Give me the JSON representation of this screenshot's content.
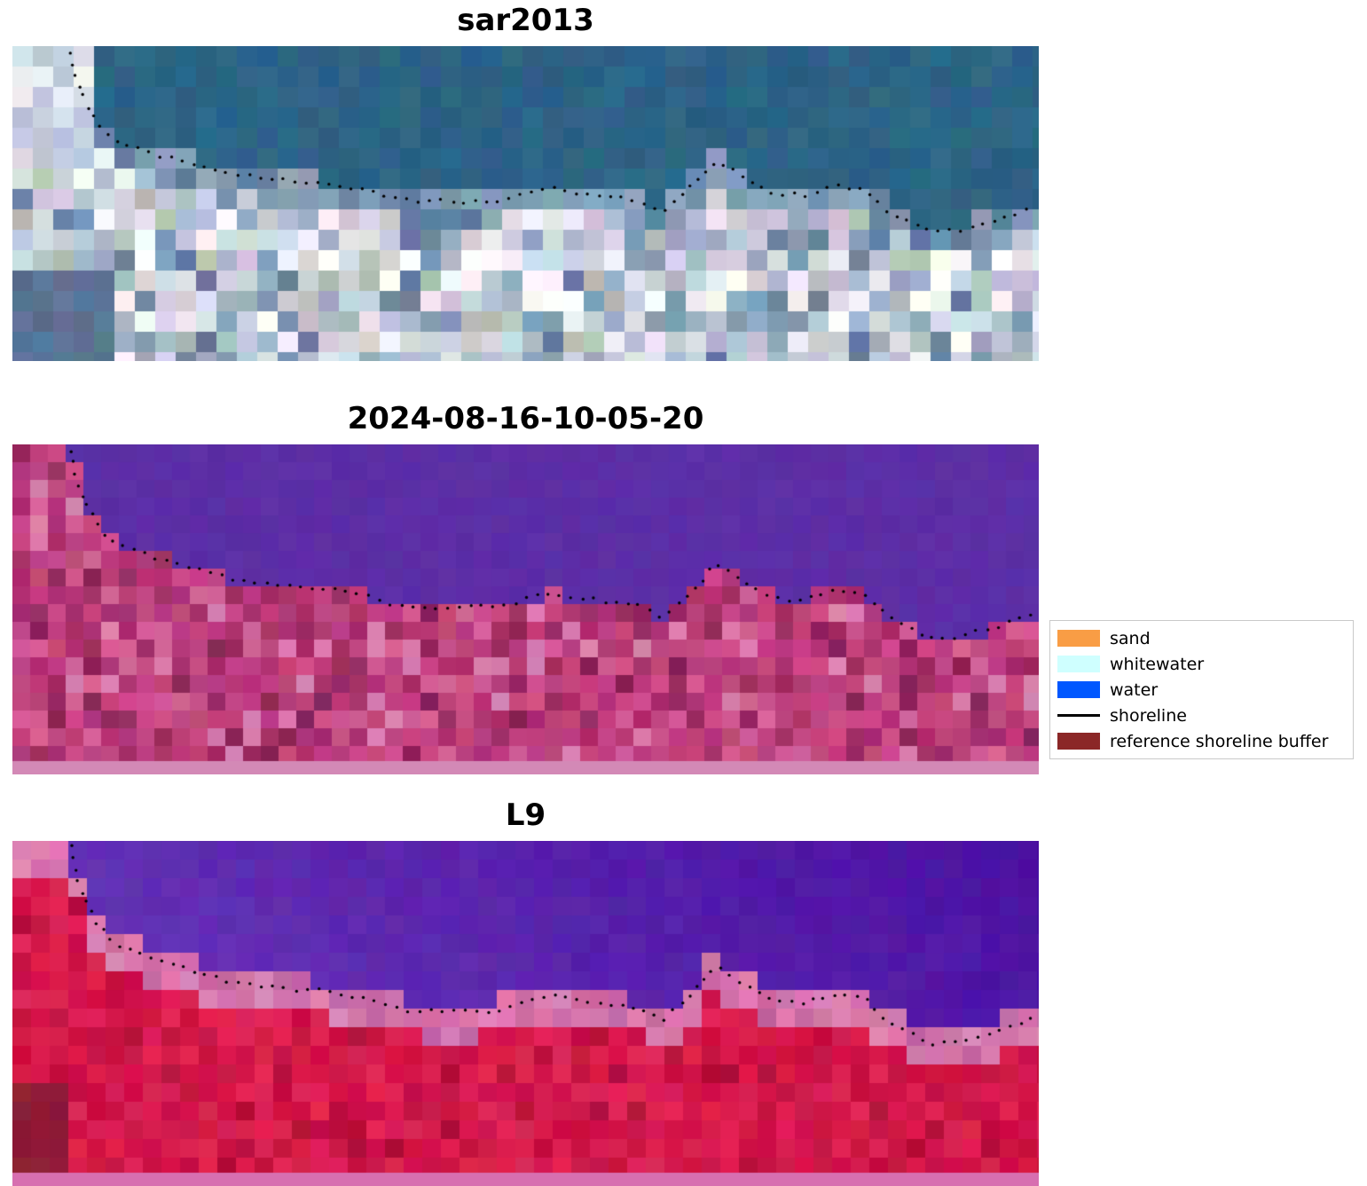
{
  "figure": {
    "background": "#ffffff"
  },
  "panels": [
    {
      "title": "sar2013",
      "style": "sar",
      "colors": {
        "water": "#2c6486",
        "cloud": [
          "#d9dde8",
          "#c6cede",
          "#edeff5",
          "#b9c3d9"
        ],
        "trans": [
          "#6d8cab",
          "#7e9ab5",
          "#5d7fa0",
          "#8aa2bc"
        ],
        "land": [
          "#b9c5d5",
          "#d5dde8",
          "#e9e9f1",
          "#a9b9cd",
          "#c9d5dd",
          "#99a9c1",
          "#d1c9d9",
          "#b1c1b9",
          "#f5f5f9",
          "#8199b5",
          "#697d9d",
          "#c9c1d5"
        ],
        "bright": "#ffffff",
        "cornerDark": "#5a7294"
      }
    },
    {
      "title": "2024-08-16-10-05-20",
      "style": "class",
      "colors": {
        "water": "#5c2ea6",
        "land": [
          "#b43578",
          "#c34182",
          "#aa2f6c",
          "#cd4d8a",
          "#9e2c62",
          "#be3f7e",
          "#d45f96",
          "#c2467a"
        ],
        "landLight": "#d97fae",
        "landDark": "#8a2458",
        "strip": "#d389b6"
      }
    },
    {
      "title": "L9",
      "style": "l9",
      "colors": {
        "waterLeft": "#6d3cba",
        "waterRight": "#4a10a2",
        "trans": [
          "#d273aa",
          "#dd85b6",
          "#c767a2",
          "#e07ab0"
        ],
        "land": [
          "#d5174a",
          "#c91043",
          "#e02355",
          "#cc1545",
          "#db2050"
        ],
        "landDark": "#b30f3a",
        "cornerDark": "#8c1c34",
        "strip": "#d76fb0"
      }
    }
  ],
  "legend": {
    "items": [
      {
        "label": "sand",
        "color": "#f99d45",
        "type": "patch"
      },
      {
        "label": "whitewater",
        "color": "#cfffff",
        "type": "patch"
      },
      {
        "label": "water",
        "color": "#0057ff",
        "type": "patch"
      },
      {
        "label": "shoreline",
        "color": "#000000",
        "type": "line"
      },
      {
        "label": "reference shoreline buffer",
        "color": "#8b2727",
        "type": "patch"
      }
    ]
  },
  "chart_data": {
    "type": "heatmap",
    "title": "",
    "panels": [
      {
        "title": "sar2013",
        "content": "pixelated RGB satellite image; teal water in upper portion, light urban/land pixels and clouds below; dotted black shoreline overlay"
      },
      {
        "title": "2024-08-16-10-05-20",
        "content": "false-color classification image; flat purple water above, magenta/pink land below, light pink reference shoreline buffer strip along the bottom edge; dotted black shoreline overlay"
      },
      {
        "title": "L9",
        "content": "Landsat-9 false-color image; purple water above, crimson-red land below with pink transition band at the water edge, light pink buffer strip along the bottom edge; dotted black shoreline overlay"
      }
    ],
    "legend_entries": [
      "sand",
      "whitewater",
      "water",
      "shoreline",
      "reference shoreline buffer"
    ],
    "shoreline_profile": [
      [
        0.057,
        0.02
      ],
      [
        0.062,
        0.1
      ],
      [
        0.072,
        0.18
      ],
      [
        0.085,
        0.25
      ],
      [
        0.1,
        0.3
      ],
      [
        0.13,
        0.335
      ],
      [
        0.16,
        0.36
      ],
      [
        0.2,
        0.4
      ],
      [
        0.25,
        0.425
      ],
      [
        0.3,
        0.435
      ],
      [
        0.335,
        0.455
      ],
      [
        0.38,
        0.49
      ],
      [
        0.43,
        0.495
      ],
      [
        0.47,
        0.49
      ],
      [
        0.5,
        0.47
      ],
      [
        0.525,
        0.45
      ],
      [
        0.55,
        0.465
      ],
      [
        0.58,
        0.475
      ],
      [
        0.61,
        0.49
      ],
      [
        0.633,
        0.52
      ],
      [
        0.655,
        0.47
      ],
      [
        0.675,
        0.4
      ],
      [
        0.684,
        0.365
      ],
      [
        0.7,
        0.39
      ],
      [
        0.72,
        0.43
      ],
      [
        0.74,
        0.465
      ],
      [
        0.77,
        0.475
      ],
      [
        0.79,
        0.45
      ],
      [
        0.81,
        0.445
      ],
      [
        0.83,
        0.455
      ],
      [
        0.852,
        0.52
      ],
      [
        0.875,
        0.555
      ],
      [
        0.895,
        0.59
      ],
      [
        0.92,
        0.585
      ],
      [
        0.945,
        0.565
      ],
      [
        0.97,
        0.54
      ],
      [
        0.995,
        0.51
      ]
    ]
  }
}
